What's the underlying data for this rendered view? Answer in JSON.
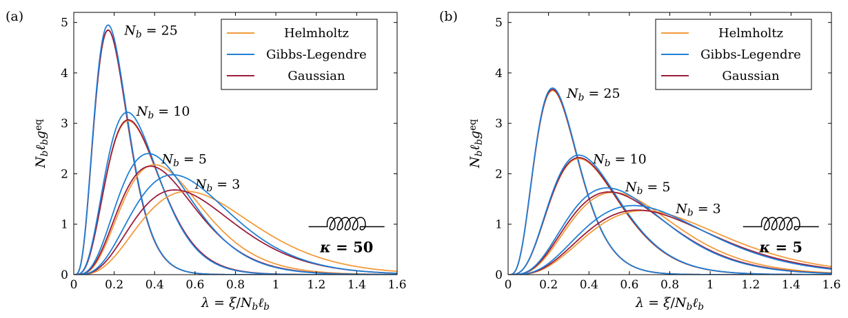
{
  "chart_data": [
    {
      "panel_label": "(a)",
      "type": "line",
      "xlabel": "λ = ξ/N_b ℓ_b",
      "ylabel": "N_b ℓ_b g^eq",
      "xlim": [
        0,
        1.6
      ],
      "ylim": [
        0,
        5.2
      ],
      "xticks": [
        "0",
        "0.2",
        "0.4",
        "0.6",
        "0.8",
        "1",
        "1.2",
        "1.4",
        "1.6"
      ],
      "yticks": [
        "0",
        "1",
        "2",
        "3",
        "4",
        "5"
      ],
      "legend": {
        "position": "top-right",
        "entries": [
          {
            "label": "Helmholtz",
            "color": "#f39a3a"
          },
          {
            "label": "Gibbs-Legendre",
            "color": "#1f7fd6"
          },
          {
            "label": "Gaussian",
            "color": "#9b1b3a"
          }
        ]
      },
      "kappa_label": "κ = 50",
      "annotations": [
        "N_b = 25",
        "N_b = 10",
        "N_b = 5",
        "N_b = 3"
      ],
      "series_groups": [
        {
          "Nb": 25,
          "label": "N_b = 25",
          "label_at": [
            0.25,
            4.85
          ],
          "helmholtz": {
            "peak_x": 0.17,
            "peak_y": 4.85
          },
          "gibbs_legendre": {
            "peak_x": 0.17,
            "peak_y": 4.95
          },
          "gaussian": {
            "peak_x": 0.17,
            "peak_y": 4.85
          }
        },
        {
          "Nb": 10,
          "label": "N_b = 10",
          "label_at": [
            0.31,
            3.25
          ],
          "helmholtz": {
            "peak_x": 0.27,
            "peak_y": 3.05
          },
          "gibbs_legendre": {
            "peak_x": 0.265,
            "peak_y": 3.22
          },
          "gaussian": {
            "peak_x": 0.27,
            "peak_y": 3.07
          }
        },
        {
          "Nb": 5,
          "label": "N_b = 5",
          "label_at": [
            0.435,
            2.3
          ],
          "helmholtz": {
            "peak_x": 0.4,
            "peak_y": 2.18
          },
          "gibbs_legendre": {
            "peak_x": 0.37,
            "peak_y": 2.4
          },
          "gaussian": {
            "peak_x": 0.38,
            "peak_y": 2.15
          }
        },
        {
          "Nb": 3,
          "label": "N_b = 3",
          "label_at": [
            0.6,
            1.8
          ],
          "helmholtz": {
            "peak_x": 0.56,
            "peak_y": 1.65
          },
          "gibbs_legendre": {
            "peak_x": 0.49,
            "peak_y": 1.98
          },
          "gaussian": {
            "peak_x": 0.5,
            "peak_y": 1.68
          }
        }
      ]
    },
    {
      "panel_label": "(b)",
      "type": "line",
      "xlabel": "λ = ξ/N_b ℓ_b",
      "ylabel": "N_b ℓ_b g^eq",
      "xlim": [
        0,
        1.6
      ],
      "ylim": [
        0,
        5.2
      ],
      "xticks": [
        "0",
        "0.2",
        "0.4",
        "0.6",
        "0.8",
        "1",
        "1.2",
        "1.4",
        "1.6"
      ],
      "yticks": [
        "0",
        "1",
        "2",
        "3",
        "4",
        "5"
      ],
      "legend": {
        "position": "top-right",
        "entries": [
          {
            "label": "Helmholtz",
            "color": "#f39a3a"
          },
          {
            "label": "Gibbs-Legendre",
            "color": "#1f7fd6"
          },
          {
            "label": "Gaussian",
            "color": "#9b1b3a"
          }
        ]
      },
      "kappa_label": "κ = 5",
      "annotations": [
        "N_b = 25",
        "N_b = 10",
        "N_b = 5",
        "N_b = 3"
      ],
      "series_groups": [
        {
          "Nb": 25,
          "label": "N_b = 25",
          "label_at": [
            0.29,
            3.6
          ],
          "helmholtz": {
            "peak_x": 0.22,
            "peak_y": 3.65
          },
          "gibbs_legendre": {
            "peak_x": 0.22,
            "peak_y": 3.7
          },
          "gaussian": {
            "peak_x": 0.22,
            "peak_y": 3.67
          }
        },
        {
          "Nb": 10,
          "label": "N_b = 10",
          "label_at": [
            0.42,
            2.3
          ],
          "helmholtz": {
            "peak_x": 0.35,
            "peak_y": 2.3
          },
          "gibbs_legendre": {
            "peak_x": 0.35,
            "peak_y": 2.37
          },
          "gaussian": {
            "peak_x": 0.35,
            "peak_y": 2.32
          }
        },
        {
          "Nb": 5,
          "label": "N_b = 5",
          "label_at": [
            0.58,
            1.75
          ],
          "helmholtz": {
            "peak_x": 0.52,
            "peak_y": 1.63
          },
          "gibbs_legendre": {
            "peak_x": 0.49,
            "peak_y": 1.72
          },
          "gaussian": {
            "peak_x": 0.5,
            "peak_y": 1.64
          }
        },
        {
          "Nb": 3,
          "label": "N_b = 3",
          "label_at": [
            0.83,
            1.32
          ],
          "helmholtz": {
            "peak_x": 0.67,
            "peak_y": 1.27
          },
          "gibbs_legendre": {
            "peak_x": 0.62,
            "peak_y": 1.37
          },
          "gaussian": {
            "peak_x": 0.64,
            "peak_y": 1.28
          }
        }
      ]
    }
  ]
}
